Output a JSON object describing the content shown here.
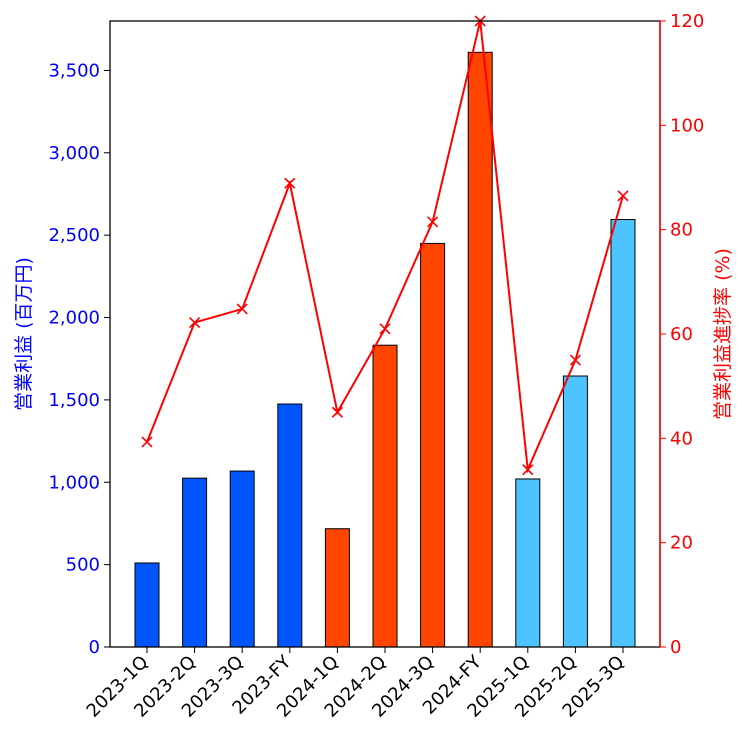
{
  "chart_data": {
    "type": "bar",
    "categories": [
      "2023-1Q",
      "2023-2Q",
      "2023-3Q",
      "2023-FY",
      "2024-1Q",
      "2024-2Q",
      "2024-3Q",
      "2024-FY",
      "2025-1Q",
      "2025-2Q",
      "2025-3Q"
    ],
    "series": [
      {
        "name": "営業利益",
        "type": "bar",
        "axis": "left",
        "values": [
          510,
          1025,
          1068,
          1475,
          718,
          1832,
          2450,
          3610,
          1020,
          1645,
          2595
        ],
        "colors": [
          "#0055ff",
          "#0055ff",
          "#0055ff",
          "#0055ff",
          "#ff4500",
          "#ff4500",
          "#ff4500",
          "#ff4500",
          "#4dc3ff",
          "#4dc3ff",
          "#4dc3ff"
        ]
      },
      {
        "name": "営業利益進捗率",
        "type": "line",
        "axis": "right",
        "marker": "x",
        "color": "#ff0000",
        "values": [
          39.3,
          62.2,
          64.8,
          88.9,
          45.0,
          61.0,
          81.5,
          120.0,
          34.0,
          55.0,
          86.5
        ]
      }
    ],
    "ylabel": "営業利益 (百万円)",
    "y2label": "営業利益進捗率 (%)",
    "ylim": [
      0,
      3800
    ],
    "y2lim": [
      0,
      120
    ],
    "yticks": [
      0,
      500,
      1000,
      1500,
      2000,
      2500,
      3000,
      3500
    ],
    "ytick_labels": [
      "0",
      "500",
      "1,000",
      "1,500",
      "2,000",
      "2,500",
      "3,000",
      "3,500"
    ],
    "y2ticks": [
      0,
      20,
      40,
      60,
      80,
      100,
      120
    ],
    "y2tick_labels": [
      "0",
      "20",
      "40",
      "60",
      "80",
      "100",
      "120"
    ],
    "grid": false,
    "left_axis_color": "#0000ff",
    "right_axis_color": "#ff0000"
  }
}
